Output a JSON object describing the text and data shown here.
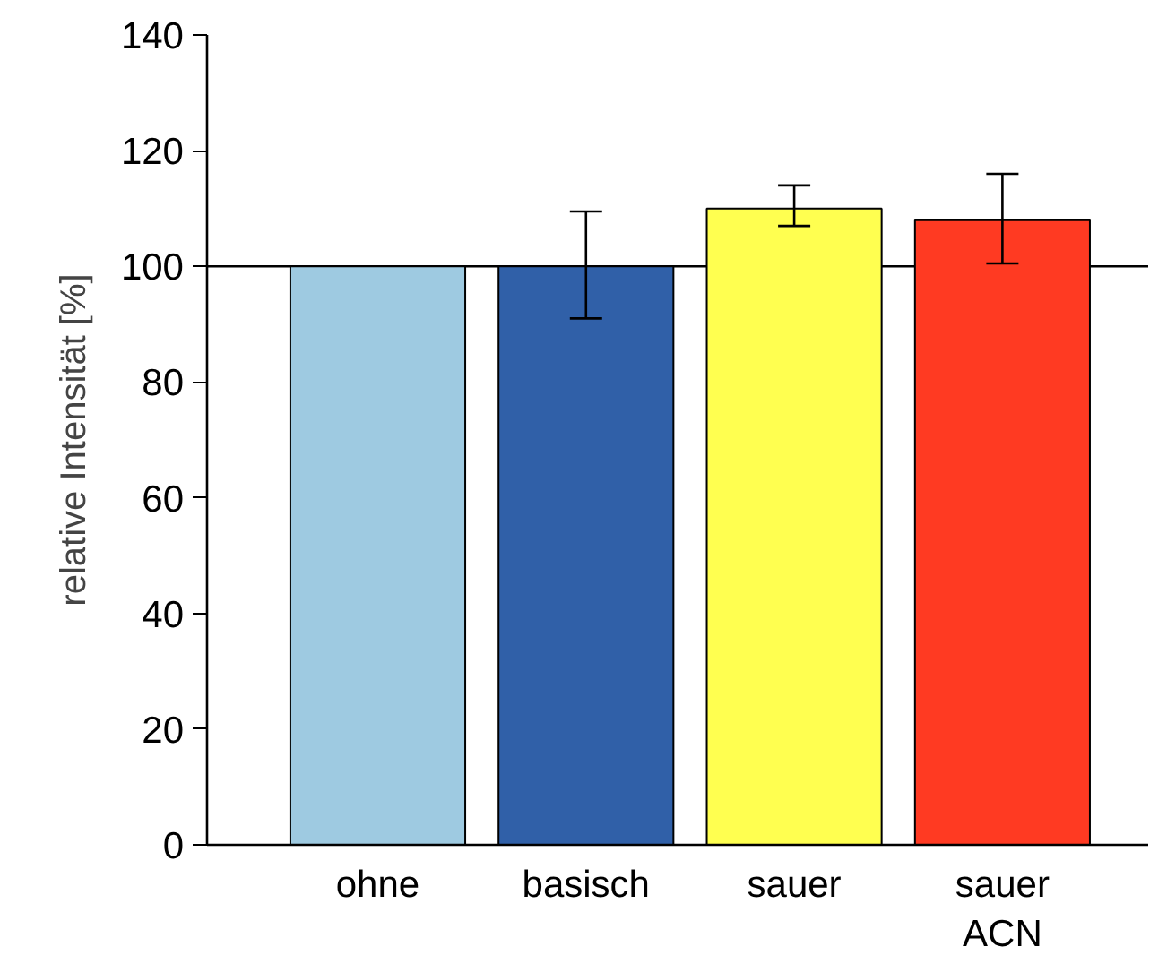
{
  "chart_data": {
    "type": "bar",
    "ylabel": "relative Intensität [%]",
    "categories": [
      "ohne",
      "basisch",
      "sauer",
      "sauer\nACN"
    ],
    "values": [
      100,
      100,
      110,
      108
    ],
    "colors": [
      "#9ecae1",
      "#3060a8",
      "#ffff50",
      "#ff3a22"
    ],
    "errors": [
      null,
      [
        91,
        109.5
      ],
      [
        107,
        114
      ],
      [
        100.5,
        116
      ]
    ],
    "ylim": [
      0,
      140
    ],
    "yticks": [
      0,
      20,
      40,
      60,
      80,
      100,
      120,
      140
    ],
    "ref_lines": [
      {
        "axis": "y",
        "value": 100,
        "label": null,
        "color": "#000000"
      }
    ],
    "grid": false
  }
}
